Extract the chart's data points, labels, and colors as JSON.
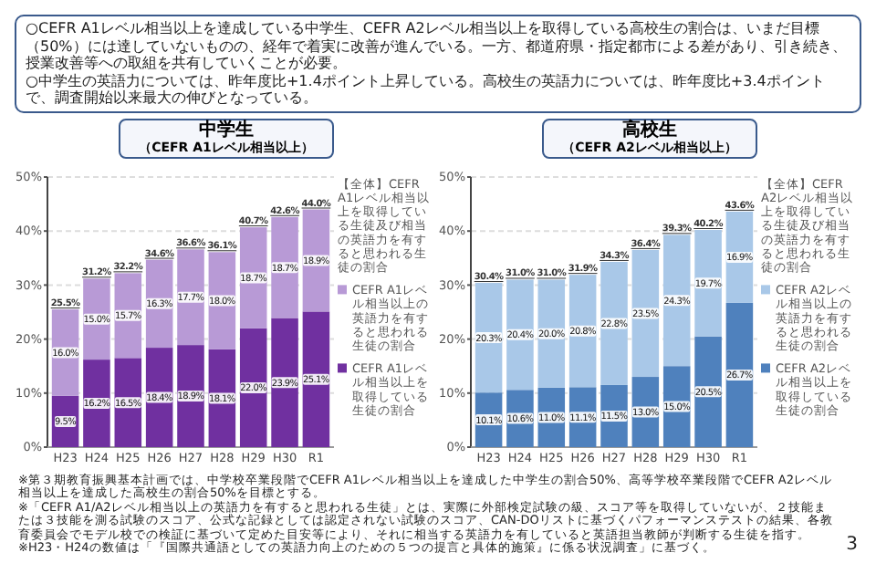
{
  "chart_data": [
    {
      "type": "other",
      "annotations": [
        "○CEFR A1レベル相当以上を達成している中学生、CEFR A2レベル相当以上を取得している高校生の割合は、いまだ目標（50%）には達していないものの、経年で着実に改善が進んでいる。一方、都道府県・指定都市による差があり、引き続き、授業改善等への取組を共有していくことが必要。",
        "○中学生の英語力については、昨年度比+1.4ポイント上昇している。高校生の英語力については、昨年度比+3.4ポイントで、調査開始以来最大の伸びとなっている。"
      ]
    },
    {
      "type": "bar",
      "title": "中学生",
      "subtitle": "（CEFR A1レベル相当以上）",
      "categories": [
        "H23",
        "H24",
        "H25",
        "H26",
        "H27",
        "H28",
        "H29",
        "H30",
        "R1"
      ],
      "stacked": true,
      "legend": "bottom",
      "grid": "y",
      "ylim": [
        0,
        50
      ],
      "yticks": [
        {
          "value": 0,
          "label": "0%"
        },
        {
          "value": 10,
          "label": "10%"
        },
        {
          "value": 20,
          "label": "20%"
        },
        {
          "value": 30,
          "label": "30%"
        },
        {
          "value": 40,
          "label": "40%"
        },
        {
          "value": 50,
          "label": "50%"
        }
      ],
      "series": [
        {
          "name": "CEFR A1レベル相当以上を取得している生徒の割合",
          "color": "#7030a0",
          "values": [
            9.5,
            16.2,
            16.5,
            18.4,
            18.9,
            18.1,
            22.0,
            23.9,
            25.1
          ],
          "value_labels": [
            "9.5%",
            "16.2%",
            "16.5%",
            "18.4%",
            "18.9%",
            "18.1%",
            "22.0%",
            "23.9%",
            "25.1%"
          ]
        },
        {
          "name": "CEFR A1レベル相当以上の英語力を有すると思われる生徒の割合",
          "color": "#b89ad6",
          "values": [
            16.0,
            15.0,
            15.7,
            16.3,
            17.7,
            18.0,
            18.7,
            18.7,
            18.9
          ],
          "value_labels": [
            "16.0%",
            "15.0%",
            "15.7%",
            "16.3%",
            "17.7%",
            "18.0%",
            "18.7%",
            "18.7%",
            "18.9%"
          ]
        }
      ],
      "totals": [
        "25.5%",
        "31.2%",
        "32.2%",
        "34.6%",
        "36.6%",
        "36.1%",
        "40.7%",
        "42.6%",
        "44.0%"
      ],
      "annotations": [
        "【全体】CEFR A1レベル相当以上を取得している生徒及び相当の英語力を有すると思われる生徒の割合"
      ]
    },
    {
      "type": "bar",
      "title": "高校生",
      "subtitle": "（CEFR A2レベル相当以上）",
      "categories": [
        "H23",
        "H24",
        "H25",
        "H26",
        "H27",
        "H28",
        "H29",
        "H30",
        "R1"
      ],
      "stacked": true,
      "legend": "bottom",
      "grid": "y",
      "ylim": [
        0,
        50
      ],
      "yticks": [
        {
          "value": 0,
          "label": "0%"
        },
        {
          "value": 10,
          "label": "10%"
        },
        {
          "value": 20,
          "label": "20%"
        },
        {
          "value": 30,
          "label": "30%"
        },
        {
          "value": 40,
          "label": "40%"
        },
        {
          "value": 50,
          "label": "50%"
        }
      ],
      "series": [
        {
          "name": "CEFR A2レベル相当以上を取得している生徒の割合",
          "color": "#4f81bd",
          "values": [
            10.1,
            10.6,
            11.0,
            11.1,
            11.5,
            13.0,
            15.0,
            20.5,
            26.7
          ],
          "value_labels": [
            "10.1%",
            "10.6%",
            "11.0%",
            "11.1%",
            "11.5%",
            "13.0%",
            "15.0%",
            "20.5%",
            "26.7%"
          ]
        },
        {
          "name": "CEFR A2レベル相当以上の英語力を有すると思われる生徒の割合",
          "color": "#a9c8e8",
          "values": [
            20.3,
            20.4,
            20.0,
            20.8,
            22.8,
            23.5,
            24.3,
            19.7,
            16.9
          ],
          "value_labels": [
            "20.3%",
            "20.4%",
            "20.0%",
            "20.8%",
            "22.8%",
            "23.5%",
            "24.3%",
            "19.7%",
            "16.9%"
          ]
        }
      ],
      "totals": [
        "30.4%",
        "31.0%",
        "31.0%",
        "31.9%",
        "34.3%",
        "36.4%",
        "39.3%",
        "40.2%",
        "43.6%"
      ],
      "annotations": [
        "【全体】CEFR A2レベル相当以上を取得している生徒及び相当の英語力を有すると思われる生徒の割合"
      ]
    },
    {
      "type": "other",
      "annotations": [
        "※第３期教育振興基本計画では、中学校卒業段階でCEFR A1レベル相当以上を達成した中学生の割合50%、高等学校卒業段階でCEFR A2レベル相当以上を達成した高校生の割合50%を目標とする。",
        "※「CEFR A1/A2レベル相当以上の英語力を有すると思われる生徒」とは、実際に外部検定試験の級、スコア等を取得していないが、２技能または３技能を測る試験のスコア、公式な記録としては認定されない試験のスコア、CAN-DOリストに基づくパフォーマンステストの結果、各教育委員会でモデル校での検証に基づいて定めた目安等により、それに相当する英語力を有していると英語担当教師が判断する生徒を指す。",
        "※H23・H24の数値は「『国際共通語としての英語力向上のための５つの提言と具体的施策』に係る状況調査」に基づく。",
        "3"
      ]
    }
  ]
}
